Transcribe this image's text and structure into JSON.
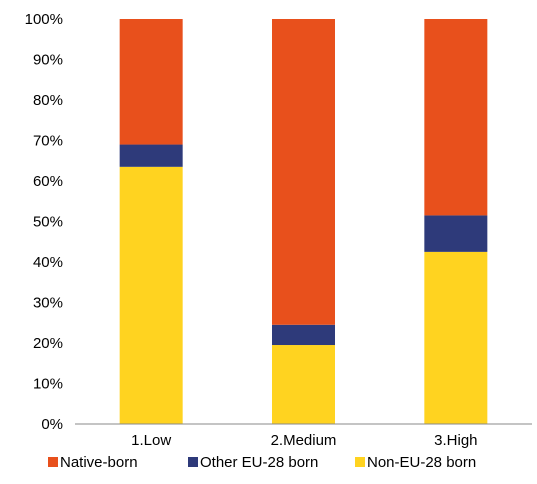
{
  "chart_data": {
    "type": "bar",
    "stacked": true,
    "percent_stacked": true,
    "categories": [
      "1.Low",
      "2.Medium",
      "3.High"
    ],
    "series": [
      {
        "name": "Non-EU-28 born",
        "color": "#FFD320",
        "values": [
          63.5,
          19.5,
          42.5
        ]
      },
      {
        "name": "Other EU-28 born",
        "color": "#2E3A7A",
        "values": [
          5.5,
          5.0,
          9.0
        ]
      },
      {
        "name": "Native-born",
        "color": "#E8501C",
        "values": [
          31.0,
          75.5,
          48.5
        ]
      }
    ],
    "y_ticks": [
      "0%",
      "10%",
      "20%",
      "30%",
      "40%",
      "50%",
      "60%",
      "70%",
      "80%",
      "90%",
      "100%"
    ],
    "ylim": [
      0,
      100
    ],
    "grid": false,
    "legend_position": "bottom",
    "legend_order": [
      "Native-born",
      "Other EU-28 born",
      "Non-EU-28 born"
    ]
  }
}
